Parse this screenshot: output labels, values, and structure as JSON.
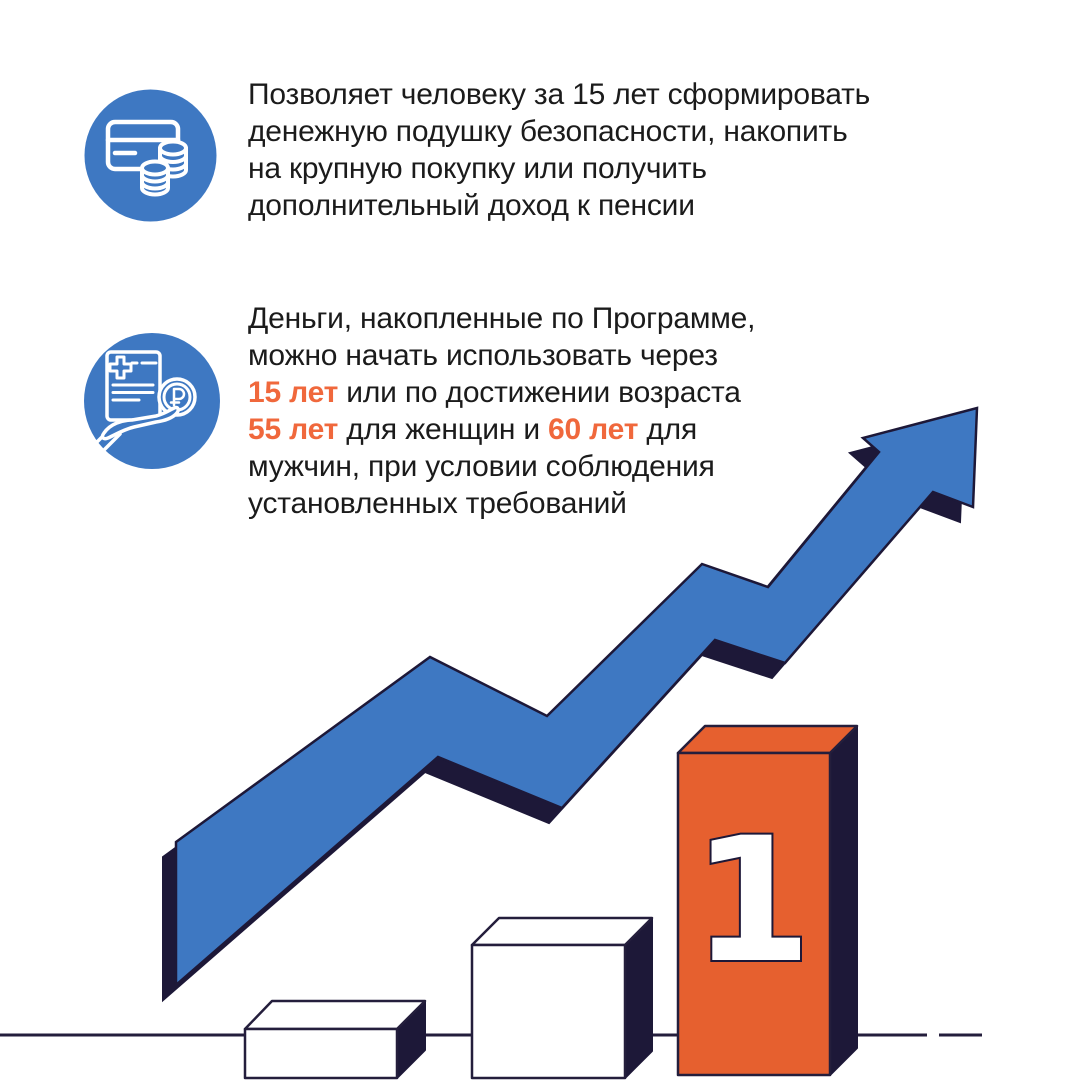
{
  "canvas": {
    "background": "#FFFFFF"
  },
  "colors": {
    "brand_blue": "#3E78C2",
    "dark_navy": "#1D1838",
    "block_orange": "#E6602F",
    "highlight_orange": "#F0683C",
    "body_text": "#1B1B1B"
  },
  "sections": [
    {
      "id": "benefit",
      "icon": "card-coins-icon",
      "lines": [
        "Позволяет человеку за 15 лет сформировать",
        "денежную подушку безопасности, накопить",
        "на крупную покупку или получить",
        "дополнительный доход к пенсии"
      ]
    },
    {
      "id": "terms",
      "icon": "document-ruble-hand-icon",
      "lines": [
        [
          {
            "t": "Деньги, накопленные по Программе,"
          }
        ],
        [
          {
            "t": "можно начать использовать через"
          }
        ],
        [
          {
            "t": "15 лет",
            "h": true
          },
          {
            "t": " или по достижении возраста"
          }
        ],
        [
          {
            "t": "55 лет",
            "h": true
          },
          {
            "t": " для женщин и "
          },
          {
            "t": "60 лет",
            "h": true
          },
          {
            "t": " для"
          }
        ],
        [
          {
            "t": "мужчин, при условии соблюдения"
          }
        ],
        [
          {
            "t": "установленных требований"
          }
        ]
      ]
    }
  ],
  "illustration": {
    "podium_rank_label": "1"
  }
}
